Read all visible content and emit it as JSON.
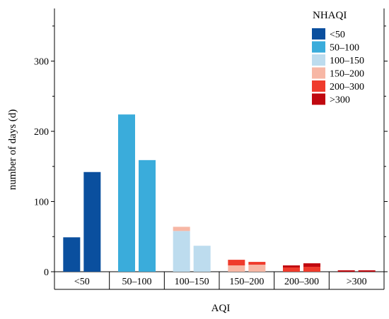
{
  "chart_data": {
    "type": "bar",
    "stacked": true,
    "xlabel": "AQI",
    "ylabel": "number of days (d)",
    "ylim": [
      0,
      375
    ],
    "yticks": [
      0,
      100,
      200,
      300
    ],
    "categories": [
      "<50",
      "50–100",
      "100–150",
      "150–200",
      "200–300",
      ">300"
    ],
    "legend": {
      "title": "NHAQI",
      "placement": "top-right",
      "entries": [
        "<50",
        "50–100",
        "100–150",
        "150–200",
        "200–300",
        ">300"
      ]
    },
    "colors": {
      "<50": "#0a4f9e",
      "50–100": "#3aacdb",
      "100–150": "#bddcee",
      "150–200": "#f7b7a5",
      "200–300": "#ef3b2c",
      ">300": "#c0080f"
    },
    "bars": [
      {
        "category": "<50",
        "stack": [
          {
            "level": "<50",
            "value": 49
          }
        ]
      },
      {
        "category": "<50",
        "stack": [
          {
            "level": "<50",
            "value": 142
          }
        ]
      },
      {
        "category": "50–100",
        "stack": [
          {
            "level": "50–100",
            "value": 224
          }
        ]
      },
      {
        "category": "50–100",
        "stack": [
          {
            "level": "50–100",
            "value": 159
          }
        ]
      },
      {
        "category": "100–150",
        "stack": [
          {
            "level": "100–150",
            "value": 58
          },
          {
            "level": "150–200",
            "value": 6
          }
        ]
      },
      {
        "category": "100–150",
        "stack": [
          {
            "level": "100–150",
            "value": 37
          }
        ]
      },
      {
        "category": "150–200",
        "stack": [
          {
            "level": "150–200",
            "value": 9
          },
          {
            "level": "200–300",
            "value": 8
          }
        ]
      },
      {
        "category": "150–200",
        "stack": [
          {
            "level": "150–200",
            "value": 10
          },
          {
            "level": "200–300",
            "value": 4
          }
        ]
      },
      {
        "category": "200–300",
        "stack": [
          {
            "level": "200–300",
            "value": 6
          },
          {
            "level": ">300",
            "value": 3
          }
        ]
      },
      {
        "category": "200–300",
        "stack": [
          {
            "level": "200–300",
            "value": 7
          },
          {
            "level": ">300",
            "value": 5
          }
        ]
      },
      {
        "category": ">300",
        "stack": [
          {
            "level": ">300",
            "value": 2
          }
        ]
      },
      {
        "category": ">300",
        "stack": [
          {
            "level": ">300",
            "value": 2
          }
        ]
      }
    ]
  }
}
